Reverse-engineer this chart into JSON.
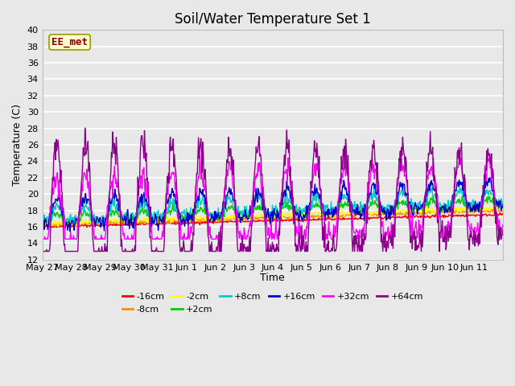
{
  "title": "Soil/Water Temperature Set 1",
  "xlabel": "Time",
  "ylabel": "Temperature (C)",
  "ylim": [
    12,
    40
  ],
  "x_labels": [
    "May 27",
    "May 28",
    "May 29",
    "May 30",
    "May 31",
    "Jun 1",
    "Jun 2",
    "Jun 3",
    "Jun 4",
    "Jun 5",
    "Jun 6",
    "Jun 7",
    "Jun 8",
    "Jun 9",
    "Jun 10",
    "Jun 11"
  ],
  "annotation_text": "EE_met",
  "annotation_color": "#8B0000",
  "annotation_bg": "#FFFACD",
  "legend_entries": [
    {
      "label": "-16cm",
      "color": "#FF0000"
    },
    {
      "label": "-8cm",
      "color": "#FF8C00"
    },
    {
      "label": "-2cm",
      "color": "#FFFF00"
    },
    {
      "label": "+2cm",
      "color": "#00CC00"
    },
    {
      "label": "+8cm",
      "color": "#00CCCC"
    },
    {
      "label": "+16cm",
      "color": "#0000CC"
    },
    {
      "label": "+32cm",
      "color": "#FF00FF"
    },
    {
      "label": "+64cm",
      "color": "#8B008B"
    }
  ],
  "bg_color": "#E8E8E8",
  "grid_color": "#FFFFFF"
}
